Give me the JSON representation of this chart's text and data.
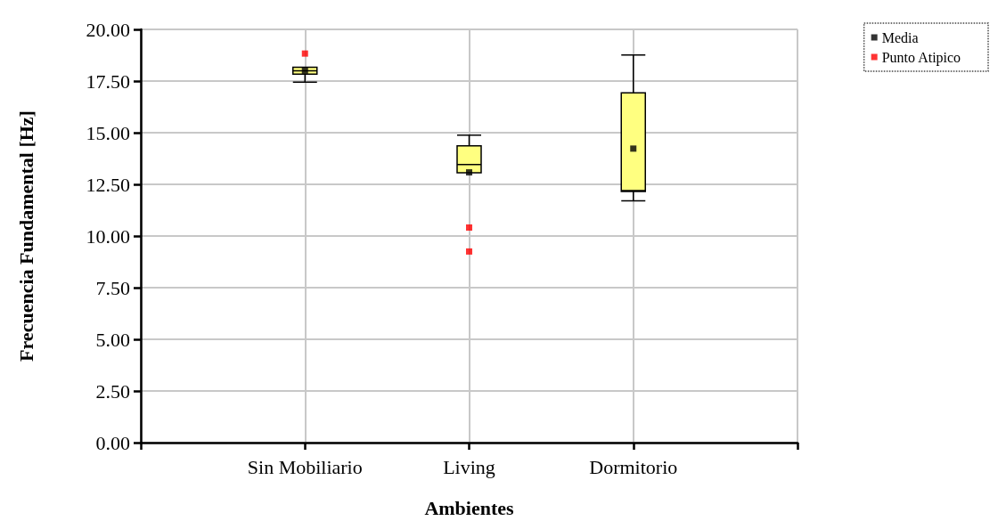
{
  "chart_data": {
    "type": "box",
    "xlabel": "Ambientes",
    "ylabel": "Frecuencia Fundamental [Hz]",
    "categories": [
      null,
      "Sin Mobiliario",
      "Living",
      "Dormitorio",
      null
    ],
    "ylim": [
      0,
      20
    ],
    "yticks": [
      {
        "value": 0,
        "label": "0.00"
      },
      {
        "value": 2.5,
        "label": "2.50"
      },
      {
        "value": 5,
        "label": "5.00"
      },
      {
        "value": 7.5,
        "label": "7.50"
      },
      {
        "value": 10,
        "label": "10.00"
      },
      {
        "value": 12.5,
        "label": "12.50"
      },
      {
        "value": 15,
        "label": "15.00"
      },
      {
        "value": 17.5,
        "label": "17.50"
      },
      {
        "value": 20,
        "label": "20.00"
      }
    ],
    "grid": true,
    "legend": "top right",
    "marker": "square",
    "series": [
      {
        "type": "box",
        "color": "#ffff80",
        "boxes": [
          null,
          {
            "low": 17.45,
            "q1": 17.83,
            "median": 18.0,
            "q3": 18.17,
            "high": 18.17
          },
          {
            "low": 13.06,
            "q1": 13.06,
            "median": 13.46,
            "q3": 14.36,
            "high": 14.88
          },
          {
            "low": 11.7,
            "q1": 12.16,
            "median": 12.2,
            "q3": 16.93,
            "high": 18.76
          },
          null
        ]
      },
      {
        "type": "scatter",
        "name": "Media",
        "color": "#000000",
        "x": [
          "Sin Mobiliario",
          "Living",
          "Dormitorio"
        ],
        "values": [
          18.0,
          13.08,
          14.23
        ]
      },
      {
        "type": "scatter",
        "name": "Punto Atipico",
        "color": "#ff0000",
        "x": [
          "Sin Mobiliario",
          "Living",
          "Living"
        ],
        "values": [
          18.83,
          10.41,
          9.25
        ]
      }
    ]
  }
}
